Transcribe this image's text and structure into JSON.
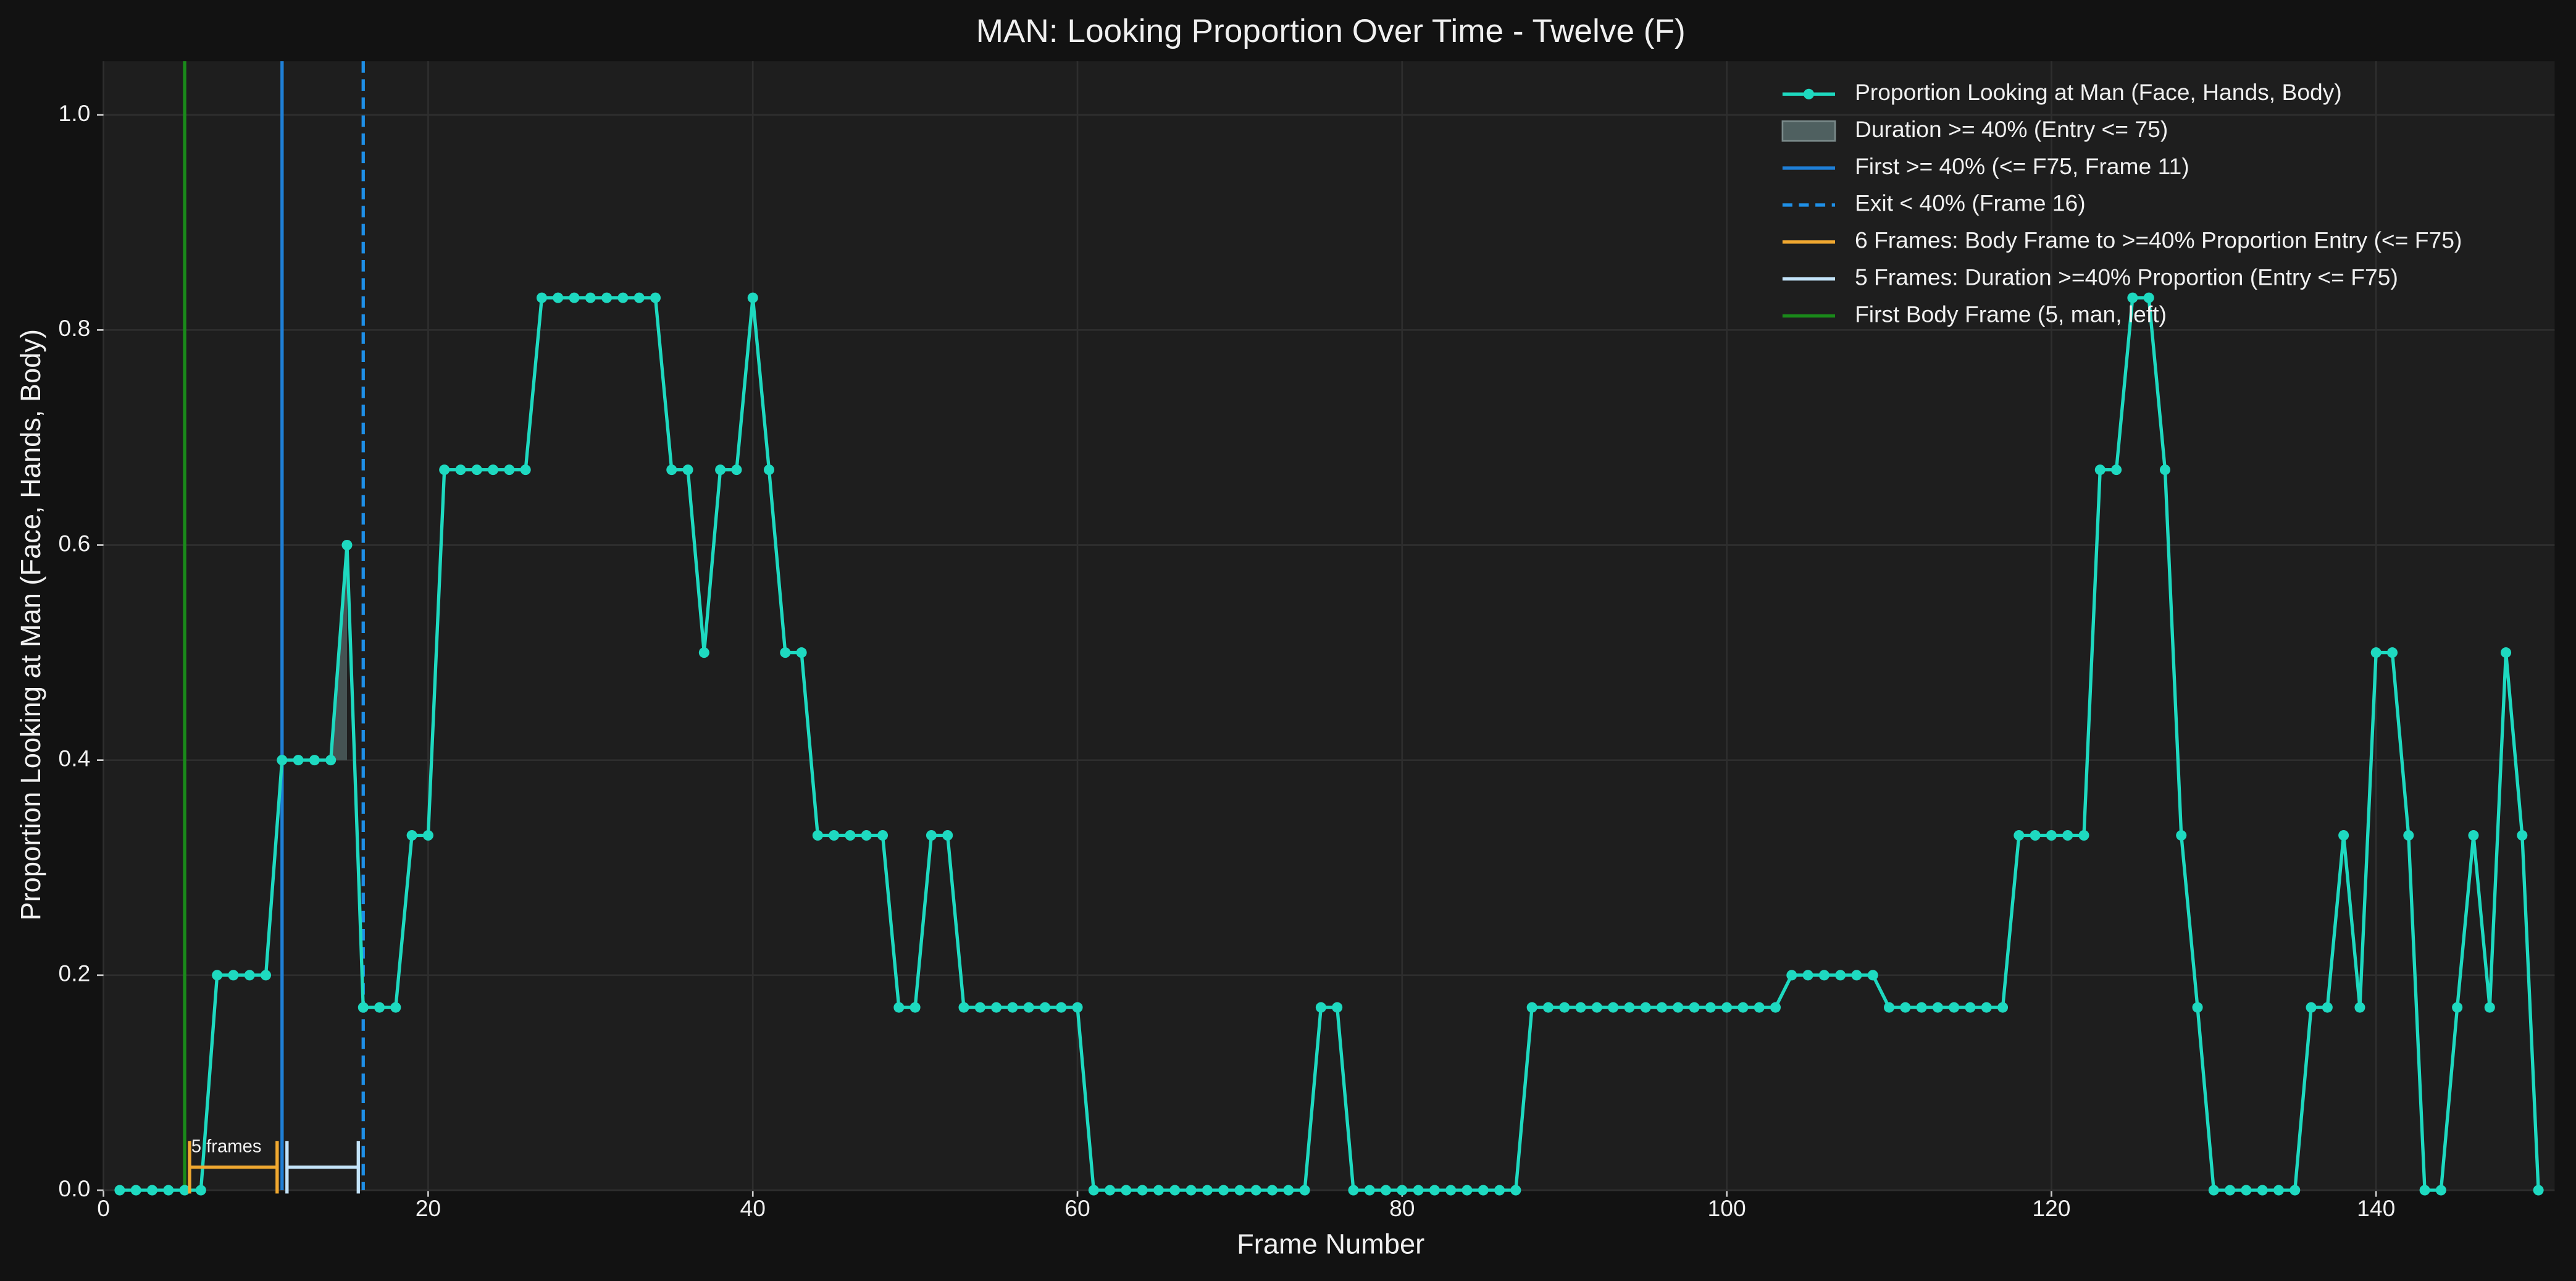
{
  "chart_data": {
    "type": "line",
    "title": "MAN: Looking Proportion Over Time - Twelve (F)",
    "xlabel": "Frame Number",
    "ylabel": "Proportion Looking at Man (Face, Hands, Body)",
    "x": [
      1,
      2,
      3,
      4,
      5,
      6,
      7,
      8,
      9,
      10,
      11,
      12,
      13,
      14,
      15,
      16,
      17,
      18,
      19,
      20,
      21,
      22,
      23,
      24,
      25,
      26,
      27,
      28,
      29,
      30,
      31,
      32,
      33,
      34,
      35,
      36,
      37,
      38,
      39,
      40,
      41,
      42,
      43,
      44,
      45,
      46,
      47,
      48,
      49,
      50,
      51,
      52,
      53,
      54,
      55,
      56,
      57,
      58,
      59,
      60,
      61,
      62,
      63,
      64,
      65,
      66,
      67,
      68,
      69,
      70,
      71,
      72,
      73,
      74,
      75,
      76,
      77,
      78,
      79,
      80,
      81,
      82,
      83,
      84,
      85,
      86,
      87,
      88,
      89,
      90,
      91,
      92,
      93,
      94,
      95,
      96,
      97,
      98,
      99,
      100,
      101,
      102,
      103,
      104,
      105,
      106,
      107,
      108,
      109,
      110,
      111,
      112,
      113,
      114,
      115,
      116,
      117,
      118,
      119,
      120,
      121,
      122,
      123,
      124,
      125,
      126,
      127,
      128,
      129,
      130,
      131,
      132,
      133,
      134,
      135,
      136,
      137,
      138,
      139,
      140,
      141,
      142,
      143,
      144,
      145,
      146,
      147,
      148,
      149,
      150
    ],
    "series": [
      {
        "name": "Proportion Looking at Man (Face, Hands, Body)",
        "color": "#1ed9c0",
        "values": [
          0,
          0,
          0,
          0,
          0,
          0,
          0.2,
          0.2,
          0.2,
          0.2,
          0.4,
          0.4,
          0.4,
          0.4,
          0.6,
          0.17,
          0.17,
          0.17,
          0.33,
          0.33,
          0.67,
          0.67,
          0.67,
          0.67,
          0.67,
          0.67,
          0.83,
          0.83,
          0.83,
          0.83,
          0.83,
          0.83,
          0.83,
          0.83,
          0.67,
          0.67,
          0.5,
          0.67,
          0.67,
          0.83,
          0.67,
          0.5,
          0.5,
          0.33,
          0.33,
          0.33,
          0.33,
          0.33,
          0.17,
          0.17,
          0.33,
          0.33,
          0.17,
          0.17,
          0.17,
          0.17,
          0.17,
          0.17,
          0.17,
          0.17,
          0,
          0,
          0,
          0,
          0,
          0,
          0,
          0,
          0,
          0,
          0,
          0,
          0,
          0,
          0.17,
          0.17,
          0,
          0,
          0,
          0,
          0,
          0,
          0,
          0,
          0,
          0,
          0,
          0.17,
          0.17,
          0.17,
          0.17,
          0.17,
          0.17,
          0.17,
          0.17,
          0.17,
          0.17,
          0.17,
          0.17,
          0.17,
          0.17,
          0.17,
          0.17,
          0.2,
          0.2,
          0.2,
          0.2,
          0.2,
          0.2,
          0.17,
          0.17,
          0.17,
          0.17,
          0.17,
          0.17,
          0.17,
          0.17,
          0.33,
          0.33,
          0.33,
          0.33,
          0.33,
          0.67,
          0.67,
          0.83,
          0.83,
          0.67,
          0.33,
          0.17,
          0,
          0,
          0,
          0,
          0,
          0,
          0.17,
          0.17,
          0.33,
          0.17,
          0.5,
          0.5,
          0.33,
          0,
          0,
          0.17,
          0.33,
          0.17,
          0.5,
          0.33,
          0
        ]
      }
    ],
    "shade": {
      "name": "Duration >= 40% (Entry <= 75)",
      "color": "#4f6060",
      "x_start": 11,
      "x_end": 15,
      "threshold": 0.4
    },
    "vlines": [
      {
        "name": "First >= 40% (<= F75, Frame 11)",
        "color": "#1f7fd6",
        "x": 11,
        "style": "solid"
      },
      {
        "name": "Exit < 40% (Frame 16)",
        "color": "#1f8fe6",
        "x": 16,
        "style": "dashed"
      },
      {
        "name": "First Body Frame (5, man, left)",
        "color": "#1a8a1a",
        "x": 5,
        "style": "solid"
      }
    ],
    "brackets": [
      {
        "name": "6 Frames: Body Frame to >=40% Proportion Entry (<= F75)",
        "color": "#f0a830",
        "x_start": 5,
        "x_end": 11
      },
      {
        "name": "5 Frames: Duration >=40% Proportion (Entry <= F75)",
        "color": "#c4e4fa",
        "x_start": 11,
        "x_end": 16
      }
    ],
    "annotation": "5 frames",
    "legend_order": [
      "series.0",
      "shade",
      "vlines.0",
      "vlines.1",
      "brackets.0",
      "brackets.1",
      "vlines.2"
    ],
    "legend": "upper right",
    "grid": true,
    "xlim": [
      0,
      151
    ],
    "ylim": [
      0,
      1.05
    ],
    "xticks": [
      0,
      20,
      40,
      60,
      80,
      100,
      120,
      140
    ],
    "yticks": [
      {
        "value": 0,
        "label": "0.0"
      },
      {
        "value": 0.2,
        "label": "0.2"
      },
      {
        "value": 0.4,
        "label": "0.4"
      },
      {
        "value": 0.6,
        "label": "0.6"
      },
      {
        "value": 0.8,
        "label": "0.8"
      },
      {
        "value": 1,
        "label": "1.0"
      }
    ]
  }
}
